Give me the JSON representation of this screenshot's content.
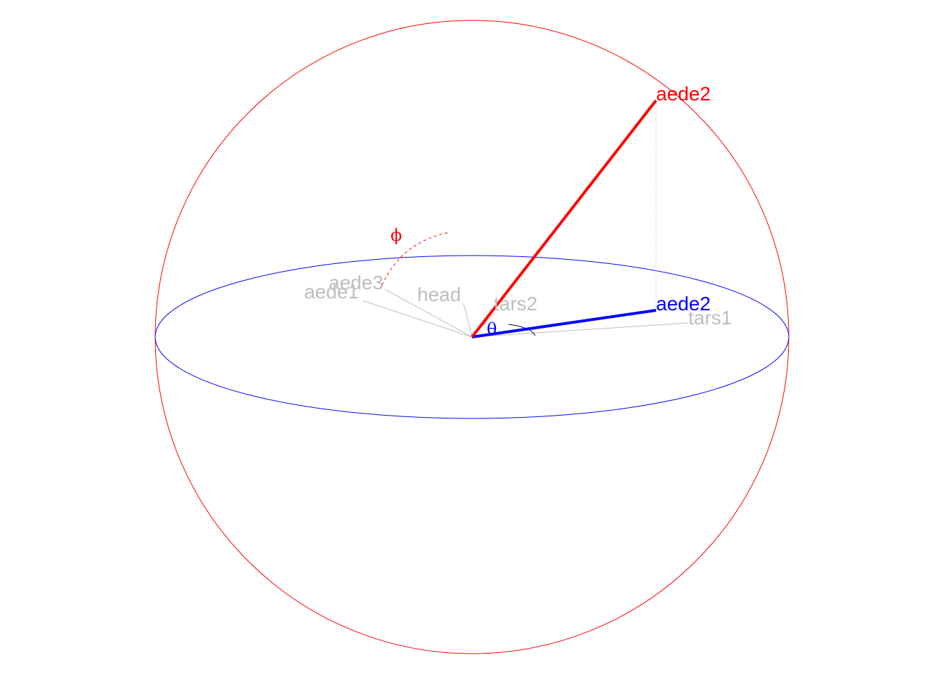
{
  "diagram": {
    "labels": {
      "aede1": "aede1",
      "aede3": "aede3",
      "head": "head",
      "tars2": "tars2",
      "tars1": "tars1",
      "aede2_projected": "aede2",
      "aede2_vector": "aede2"
    },
    "symbols": {
      "phi": "ϕ",
      "theta": "θ"
    },
    "colors": {
      "sphere": "#ff0000",
      "equator": "#0000ff",
      "vector": "#ff0000",
      "projection": "#0000ff",
      "variables": "#bebebe",
      "drop_line": "#d3d3d3"
    }
  }
}
